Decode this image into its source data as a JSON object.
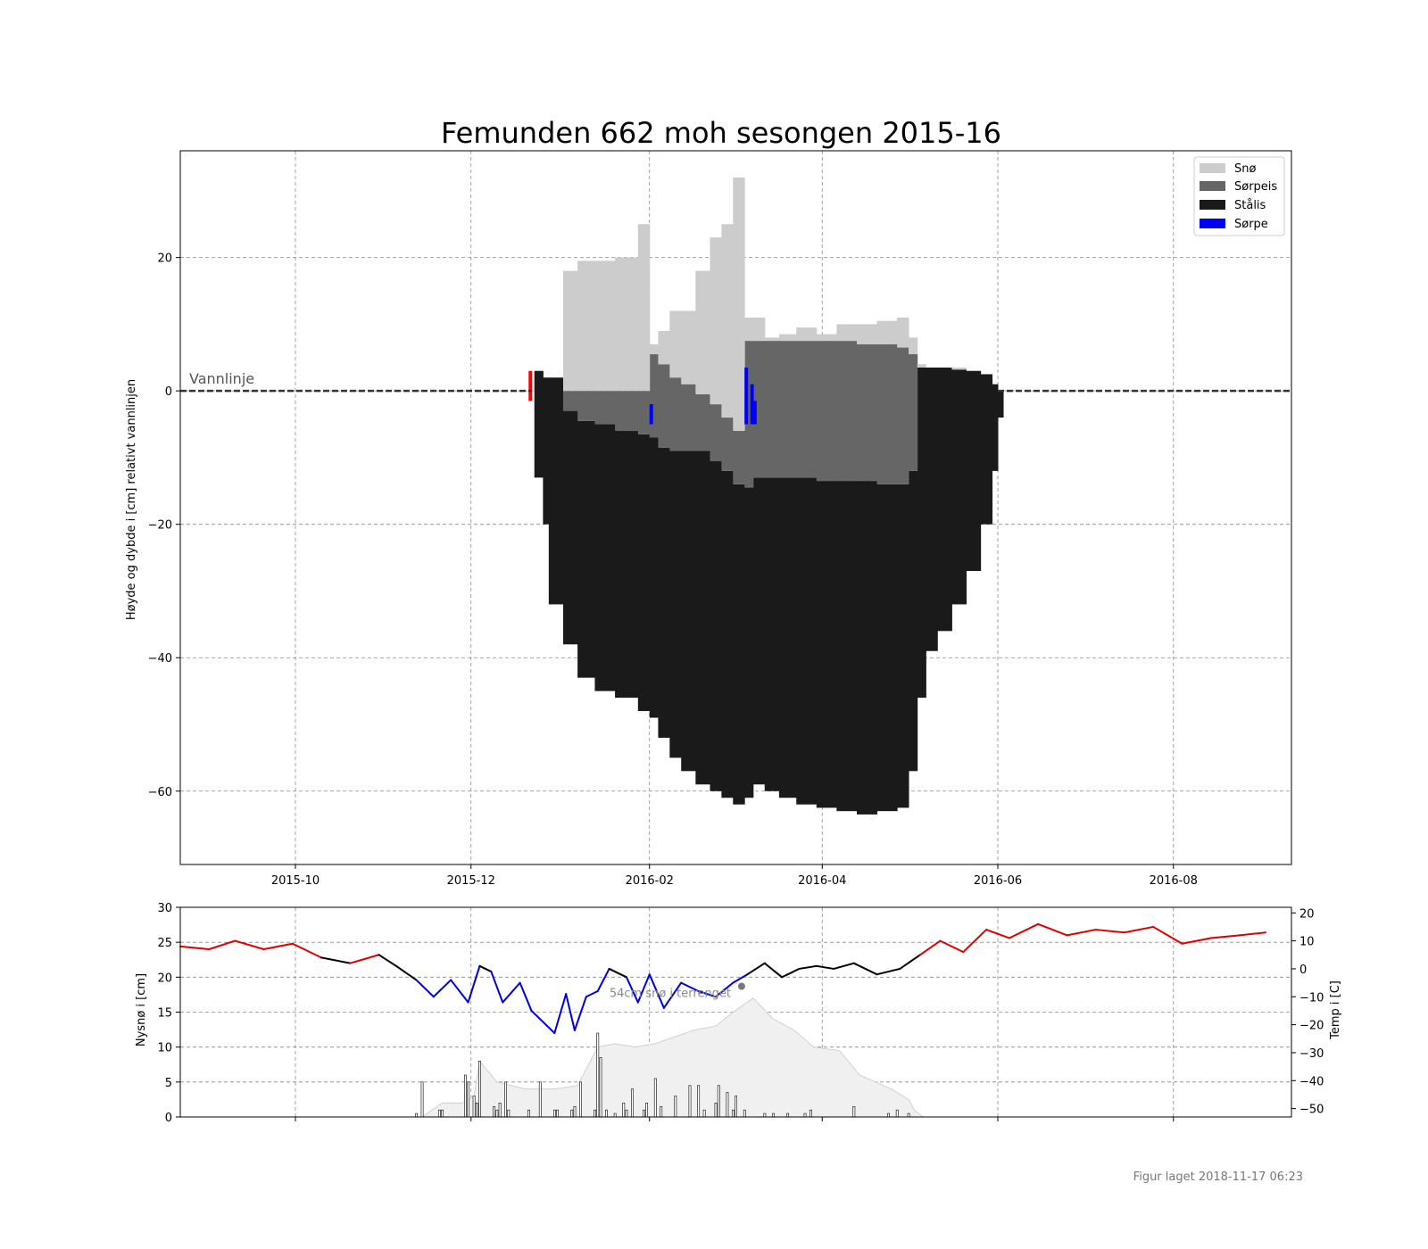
{
  "chart_data": [
    {
      "type": "area",
      "title": "Femunden 662 moh sesongen 2015-16",
      "ylabel": "Høyde og dybde i [cm] relativt vannlinjen",
      "xlabel": "",
      "xlim": [
        "2015-08-22",
        "2016-09-11"
      ],
      "ylim": [
        -71,
        36
      ],
      "x_ticks": [
        "2015-10",
        "2015-12",
        "2016-02",
        "2016-04",
        "2016-06",
        "2016-08"
      ],
      "y_ticks": [
        -60,
        -40,
        -20,
        0,
        20
      ],
      "grid": true,
      "legend_position": "top-right",
      "annotation": "Vannlinje",
      "legend": [
        {
          "name": "Snø",
          "color": "#cccccc"
        },
        {
          "name": "Sørpeis",
          "color": "#666666"
        },
        {
          "name": "Stålis",
          "color": "#1a1a1a"
        },
        {
          "name": "Sørpe",
          "color": "#0000ff"
        }
      ],
      "observation_dates": [
        "2015-12-23",
        "2015-12-26",
        "2015-12-28",
        "2016-01-02",
        "2016-01-07",
        "2016-01-13",
        "2016-01-20",
        "2016-01-28",
        "2016-02-01",
        "2016-02-04",
        "2016-02-08",
        "2016-02-12",
        "2016-02-17",
        "2016-02-22",
        "2016-02-26",
        "2016-03-01",
        "2016-03-05",
        "2016-03-08",
        "2016-03-12",
        "2016-03-17",
        "2016-03-23",
        "2016-03-30",
        "2016-04-06",
        "2016-04-13",
        "2016-04-20",
        "2016-04-27",
        "2016-05-01",
        "2016-05-04",
        "2016-05-07",
        "2016-05-11",
        "2016-05-16",
        "2016-05-21",
        "2016-05-26",
        "2016-05-30",
        "2016-06-01"
      ],
      "snow_top": [
        0,
        0,
        2,
        18,
        19.5,
        19.5,
        20,
        25,
        7,
        9,
        12,
        12,
        18,
        23,
        25,
        32,
        11,
        11,
        8,
        8.5,
        9.5,
        8.5,
        10,
        10,
        10.5,
        11,
        8,
        4,
        3.5,
        3.5,
        3.5,
        3,
        2.5,
        1,
        0
      ],
      "sorpeis_top": [
        0,
        0,
        0,
        0,
        0,
        0,
        0,
        0,
        5.5,
        4,
        2,
        1,
        -0.5,
        -2,
        -4,
        -6,
        7.5,
        7.5,
        7.5,
        7.5,
        7.5,
        7.5,
        7.5,
        7,
        7,
        6.5,
        5.5,
        3.5,
        3.5,
        3.5,
        3.2,
        3,
        2.5,
        1,
        0
      ],
      "stalis_top": [
        3,
        2,
        2,
        -3,
        -4.5,
        -5,
        -6,
        -6.5,
        -7,
        -8.5,
        -9,
        -9,
        -9,
        -10.5,
        -12,
        -14,
        -14.5,
        -13,
        -13,
        -13,
        -13,
        -13.5,
        -13.5,
        -13.5,
        -14,
        -14,
        -12,
        3.5,
        3.5,
        3.5,
        3.2,
        3,
        2.5,
        1,
        0
      ],
      "stalis_bottom": [
        -13,
        -20,
        -32,
        -38,
        -43,
        -45,
        -46,
        -48,
        -49,
        -52,
        -55,
        -57,
        -59,
        -60,
        -61,
        -62,
        -61,
        -59,
        -60,
        -61,
        -62,
        -62.5,
        -63,
        -63.5,
        -63,
        -62.5,
        -57,
        -46,
        -39,
        -36,
        -32,
        -27,
        -20,
        -12,
        -4
      ],
      "sorpe_dates": [
        "2016-02-01",
        "2016-03-05",
        "2016-03-07",
        "2016-03-08"
      ],
      "sorpe_top": [
        -2,
        3.5,
        1,
        -1.5
      ],
      "sorpe_bottom": [
        -5,
        -5,
        -5,
        -5
      ],
      "ice_start_date": "2015-12-21",
      "ice_start_top": 3,
      "ice_start_bottom": -1.5,
      "ice_start_color": "#ff0000",
      "vannlinje_dates": [
        "2015-08-22",
        "2015-12-22",
        "2016-06-01",
        "2016-09-11"
      ]
    },
    {
      "type": "bar",
      "ylabel": "Nysnø i [cm]",
      "ylabel_right": "Temp i [C]",
      "xlim": [
        "2015-08-22",
        "2016-09-11"
      ],
      "ylim": [
        0,
        30
      ],
      "ylim_right": [
        -53,
        22
      ],
      "y_ticks": [
        0,
        5,
        10,
        15,
        20,
        25,
        30
      ],
      "y_ticks_right": [
        -50,
        -40,
        -30,
        -20,
        -10,
        0,
        10,
        20
      ],
      "grid": true,
      "annotation": "54cm snø i terrenget",
      "annotation_date": "2016-03-04",
      "new_snow": {
        "dates": [
          "2015-11-12",
          "2015-11-14",
          "2015-11-20",
          "2015-11-21",
          "2015-11-29",
          "2015-11-30",
          "2015-12-02",
          "2015-12-03",
          "2015-12-04",
          "2015-12-09",
          "2015-12-10",
          "2015-12-11",
          "2015-12-13",
          "2015-12-14",
          "2015-12-21",
          "2015-12-25",
          "2015-12-30",
          "2015-12-31",
          "2016-01-05",
          "2016-01-06",
          "2016-01-08",
          "2016-01-13",
          "2016-01-14",
          "2016-01-15",
          "2016-01-17",
          "2016-01-20",
          "2016-01-23",
          "2016-01-24",
          "2016-01-26",
          "2016-01-30",
          "2016-01-31",
          "2016-02-03",
          "2016-02-05",
          "2016-02-10",
          "2016-02-15",
          "2016-02-18",
          "2016-02-20",
          "2016-02-24",
          "2016-02-25",
          "2016-02-28",
          "2016-03-01",
          "2016-03-02",
          "2016-03-05",
          "2016-03-12",
          "2016-03-15",
          "2016-03-20",
          "2016-03-26",
          "2016-03-28",
          "2016-04-12",
          "2016-04-24",
          "2016-04-27",
          "2016-05-01"
        ],
        "values": [
          0.5,
          5,
          1,
          1,
          6,
          5,
          3,
          2,
          8,
          1.5,
          1,
          2,
          5,
          1,
          1,
          5,
          1,
          1,
          1,
          1.5,
          5,
          1,
          12,
          8.5,
          1,
          0.5,
          2,
          1,
          4,
          1,
          2,
          5.5,
          1.5,
          3,
          4.5,
          4.5,
          1,
          2,
          4.5,
          3.5,
          1,
          3,
          1,
          0.5,
          0.5,
          0.5,
          0.5,
          1,
          1.5,
          0.5,
          1,
          0.5
        ]
      },
      "snow_on_ground": {
        "dates": [
          "2015-11-14",
          "2015-11-21",
          "2015-11-28",
          "2015-12-02",
          "2015-12-04",
          "2015-12-10",
          "2015-12-20",
          "2015-12-30",
          "2016-01-07",
          "2016-01-14",
          "2016-01-20",
          "2016-01-27",
          "2016-02-03",
          "2016-02-10",
          "2016-02-17",
          "2016-02-24",
          "2016-03-01",
          "2016-03-08",
          "2016-03-15",
          "2016-03-22",
          "2016-03-29",
          "2016-04-07",
          "2016-04-14",
          "2016-04-25",
          "2016-05-01",
          "2016-05-03",
          "2016-05-06"
        ],
        "values": [
          0,
          2,
          2,
          3,
          8,
          5,
          4,
          4,
          4.5,
          10,
          10.5,
          10,
          10.5,
          11.5,
          12.5,
          13,
          15,
          17,
          14,
          12.5,
          10,
          9.5,
          6,
          4,
          2.5,
          1,
          0
        ]
      },
      "temperature": {
        "dates": [
          "2015-08-22",
          "2015-09-01",
          "2015-09-10",
          "2015-09-20",
          "2015-09-30",
          "2015-10-10",
          "2015-10-20",
          "2015-10-30",
          "2015-11-05",
          "2015-11-12",
          "2015-11-18",
          "2015-11-24",
          "2015-11-30",
          "2015-12-04",
          "2015-12-08",
          "2015-12-12",
          "2015-12-18",
          "2015-12-22",
          "2015-12-26",
          "2015-12-30",
          "2016-01-03",
          "2016-01-06",
          "2016-01-10",
          "2016-01-14",
          "2016-01-18",
          "2016-01-24",
          "2016-01-28",
          "2016-02-01",
          "2016-02-06",
          "2016-02-12",
          "2016-02-18",
          "2016-02-24",
          "2016-03-01",
          "2016-03-06",
          "2016-03-12",
          "2016-03-18",
          "2016-03-24",
          "2016-03-30",
          "2016-04-05",
          "2016-04-12",
          "2016-04-20",
          "2016-04-28",
          "2016-05-05",
          "2016-05-12",
          "2016-05-20",
          "2016-05-28",
          "2016-06-05",
          "2016-06-15",
          "2016-06-25",
          "2016-07-05",
          "2016-07-15",
          "2016-07-25",
          "2016-08-04",
          "2016-08-14",
          "2016-08-24",
          "2016-09-02"
        ],
        "values": [
          8,
          7,
          10,
          7,
          9,
          4,
          2,
          5,
          1,
          -4,
          -10,
          -4,
          -12,
          1,
          -1,
          -12,
          -5,
          -15,
          -19,
          -23,
          -9,
          -22,
          -10,
          -8,
          0,
          -3,
          -12,
          -2,
          -14,
          -5,
          -8,
          -10,
          -5,
          -2,
          2,
          -3,
          0,
          1,
          0,
          2,
          -2,
          0,
          5,
          10,
          6,
          14,
          11,
          16,
          12,
          14,
          13,
          15,
          9,
          11,
          12,
          13
        ]
      },
      "temperature_colors": {
        "warm": "#dd0000",
        "cold": "#0000dd",
        "near_zero": "#000000"
      }
    }
  ],
  "footer": "Figur laget 2018-11-17 06:23"
}
